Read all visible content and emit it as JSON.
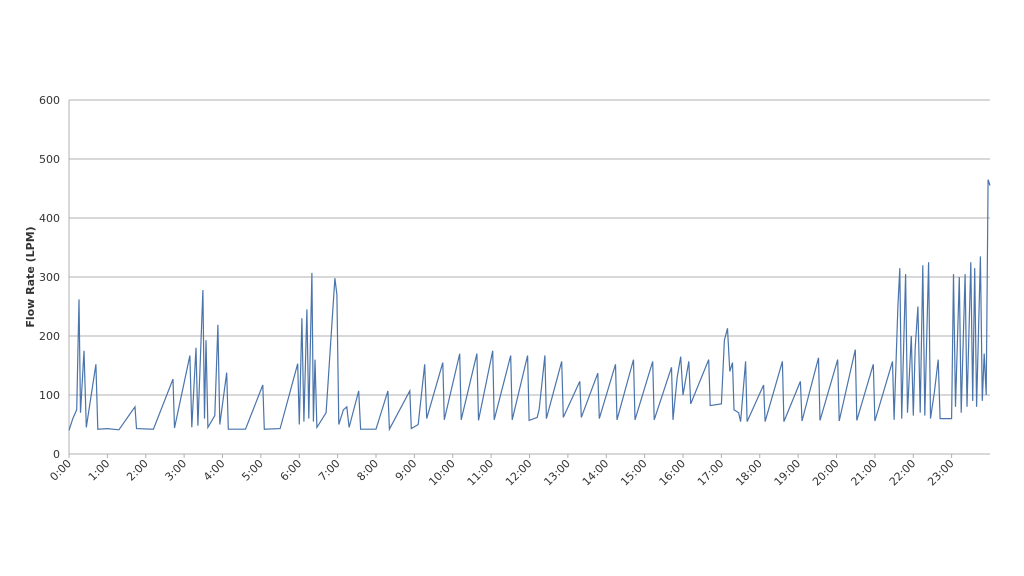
{
  "chart_data": {
    "type": "line",
    "y_label": "Flow Rate (LPM)",
    "color": "#4a74ab",
    "grid": true,
    "xlim": [
      0,
      24
    ],
    "ylim": [
      0,
      600
    ],
    "yticks": [
      0,
      100,
      200,
      300,
      400,
      500,
      600
    ],
    "xticks": [
      {
        "value": 0,
        "label": "0:00"
      },
      {
        "value": 1,
        "label": "1:00"
      },
      {
        "value": 2,
        "label": "2:00"
      },
      {
        "value": 3,
        "label": "3:00"
      },
      {
        "value": 4,
        "label": "4:00"
      },
      {
        "value": 5,
        "label": "5:00"
      },
      {
        "value": 6,
        "label": "6:00"
      },
      {
        "value": 7,
        "label": "7:00"
      },
      {
        "value": 8,
        "label": "8:00"
      },
      {
        "value": 9,
        "label": "9:00"
      },
      {
        "value": 10,
        "label": "10:00"
      },
      {
        "value": 11,
        "label": "11:00"
      },
      {
        "value": 12,
        "label": "12:00"
      },
      {
        "value": 13,
        "label": "13:00"
      },
      {
        "value": 14,
        "label": "14:00"
      },
      {
        "value": 15,
        "label": "15:00"
      },
      {
        "value": 16,
        "label": "16:00"
      },
      {
        "value": 17,
        "label": "17:00"
      },
      {
        "value": 18,
        "label": "18:00"
      },
      {
        "value": 19,
        "label": "19:00"
      },
      {
        "value": 20,
        "label": "20:00"
      },
      {
        "value": 21,
        "label": "21:00"
      },
      {
        "value": 22,
        "label": "22:00"
      },
      {
        "value": 23,
        "label": "23:00"
      }
    ],
    "x": [
      0,
      0.1,
      0.2,
      0.26,
      0.3,
      0.39,
      0.45,
      0.7,
      0.75,
      1.0,
      1.3,
      1.72,
      1.76,
      2.2,
      2.71,
      2.75,
      3.15,
      3.2,
      3.31,
      3.36,
      3.49,
      3.53,
      3.57,
      3.62,
      3.8,
      3.88,
      3.93,
      4.11,
      4.15,
      4.6,
      5.05,
      5.09,
      5.5,
      5.96,
      6.0,
      6.07,
      6.12,
      6.2,
      6.25,
      6.33,
      6.37,
      6.41,
      6.46,
      6.7,
      6.93,
      6.98,
      7.03,
      7.15,
      7.24,
      7.3,
      7.55,
      7.6,
      8.0,
      8.31,
      8.35,
      8.88,
      8.92,
      9.1,
      9.27,
      9.32,
      9.74,
      9.78,
      10.18,
      10.22,
      10.63,
      10.67,
      11.04,
      11.08,
      11.51,
      11.55,
      11.95,
      11.99,
      12.2,
      12.25,
      12.4,
      12.44,
      12.84,
      12.88,
      13.31,
      13.35,
      13.78,
      13.82,
      14.24,
      14.28,
      14.71,
      14.75,
      15.21,
      15.25,
      15.7,
      15.74,
      15.85,
      15.94,
      16.0,
      16.15,
      16.2,
      16.67,
      16.71,
      17.0,
      17.08,
      17.16,
      17.22,
      17.29,
      17.33,
      17.45,
      17.5,
      17.63,
      17.67,
      18.1,
      18.14,
      18.59,
      18.63,
      19.06,
      19.1,
      19.53,
      19.57,
      20.03,
      20.07,
      20.49,
      20.53,
      20.96,
      21.0,
      21.46,
      21.5,
      21.6,
      21.65,
      21.7,
      21.8,
      21.85,
      21.95,
      22.0,
      22.05,
      22.12,
      22.18,
      22.25,
      22.3,
      22.4,
      22.45,
      22.55,
      22.65,
      22.7,
      23.0,
      23.05,
      23.1,
      23.2,
      23.25,
      23.35,
      23.4,
      23.5,
      23.55,
      23.6,
      23.65,
      23.75,
      23.8,
      23.85,
      23.9,
      23.95,
      24
    ],
    "values": [
      40,
      60,
      75,
      262,
      70,
      175,
      45,
      152,
      42,
      43,
      41,
      80,
      43,
      42,
      127,
      44,
      167,
      45,
      180,
      48,
      278,
      60,
      193,
      45,
      65,
      219,
      50,
      138,
      42,
      42,
      117,
      42,
      43,
      153,
      50,
      230,
      55,
      245,
      60,
      307,
      55,
      160,
      45,
      70,
      298,
      270,
      50,
      75,
      80,
      45,
      107,
      42,
      42,
      107,
      42,
      107,
      43,
      50,
      152,
      60,
      155,
      58,
      170,
      58,
      170,
      57,
      175,
      58,
      167,
      58,
      167,
      57,
      62,
      75,
      167,
      60,
      157,
      62,
      123,
      62,
      137,
      60,
      152,
      58,
      160,
      58,
      157,
      58,
      147,
      58,
      130,
      165,
      100,
      157,
      85,
      160,
      82,
      85,
      193,
      213,
      140,
      155,
      75,
      70,
      55,
      157,
      55,
      117,
      55,
      157,
      55,
      123,
      56,
      163,
      57,
      160,
      56,
      177,
      57,
      152,
      56,
      157,
      58,
      250,
      315,
      60,
      305,
      70,
      200,
      65,
      180,
      250,
      70,
      320,
      65,
      325,
      60,
      105,
      160,
      60,
      60,
      305,
      80,
      300,
      70,
      305,
      80,
      325,
      90,
      315,
      80,
      335,
      90,
      170,
      100,
      465,
      455
    ]
  }
}
